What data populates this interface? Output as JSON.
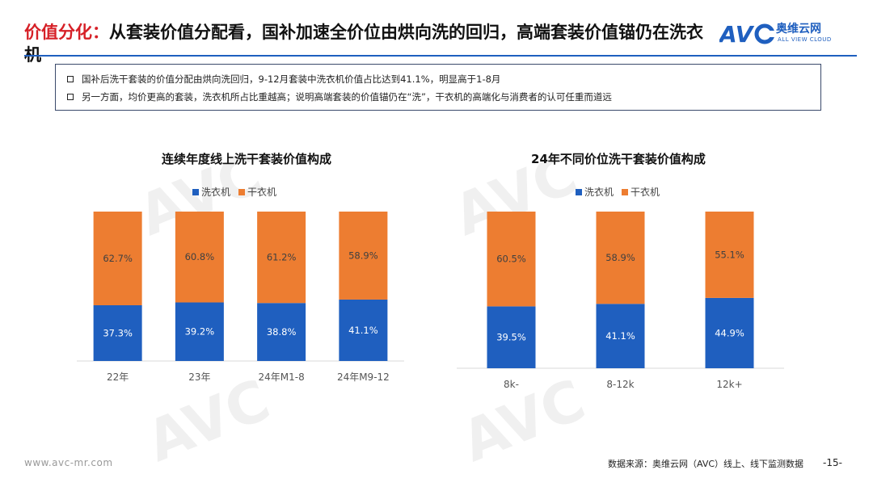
{
  "header": {
    "title_accent": "价值分化：",
    "title_main": "从套装价值分配看，国补加速全价位由烘向洗的回归，高端套装价值锚仍在洗衣机",
    "logo_cn": "奥维云网",
    "logo_en": "ALL VIEW CLOUD",
    "logo_mark": "AVC"
  },
  "bullets": [
    "国补后洗干套装的价值分配由烘向洗回归，9-12月套装中洗衣机价值占比达到41.1%，明显高于1-8月",
    "另一方面，均价更高的套装，洗衣机所占比重越高；说明高端套装的价值锚仍在“洗”，干衣机的高端化与消费者的认可任重而道远"
  ],
  "colors": {
    "washer": "#1f5fbf",
    "dryer": "#ed7d31",
    "accent": "#d62027",
    "brand": "#1f5fbf"
  },
  "chart_data": [
    {
      "type": "bar",
      "stacked": true,
      "title": "连续年度线上洗干套装价值构成",
      "categories": [
        "22年",
        "23年",
        "24年M1-8",
        "24年M9-12"
      ],
      "series": [
        {
          "name": "洗衣机",
          "values": [
            37.3,
            39.2,
            38.8,
            41.1
          ],
          "labels": [
            "37.3%",
            "39.2%",
            "38.8%",
            "41.1%"
          ]
        },
        {
          "name": "干衣机",
          "values": [
            62.7,
            60.8,
            61.2,
            58.9
          ],
          "labels": [
            "62.7%",
            "60.8%",
            "61.2%",
            "58.9%"
          ]
        }
      ],
      "ylim": [
        0,
        100
      ],
      "legend": "top",
      "grid": false
    },
    {
      "type": "bar",
      "stacked": true,
      "title": "24年不同价位洗干套装价值构成",
      "categories": [
        "8k-",
        "8-12k",
        "12k+"
      ],
      "series": [
        {
          "name": "洗衣机",
          "values": [
            39.5,
            41.1,
            44.9
          ],
          "labels": [
            "39.5%",
            "41.1%",
            "44.9%"
          ]
        },
        {
          "name": "干衣机",
          "values": [
            60.5,
            58.9,
            55.1
          ],
          "labels": [
            "60.5%",
            "58.9%",
            "55.1%"
          ]
        }
      ],
      "ylim": [
        0,
        100
      ],
      "legend": "top",
      "grid": false
    }
  ],
  "footer": {
    "url": "www.avc-mr.com",
    "source": "数据来源：奥维云网（AVC）线上、线下监测数据",
    "page": "-15-"
  }
}
